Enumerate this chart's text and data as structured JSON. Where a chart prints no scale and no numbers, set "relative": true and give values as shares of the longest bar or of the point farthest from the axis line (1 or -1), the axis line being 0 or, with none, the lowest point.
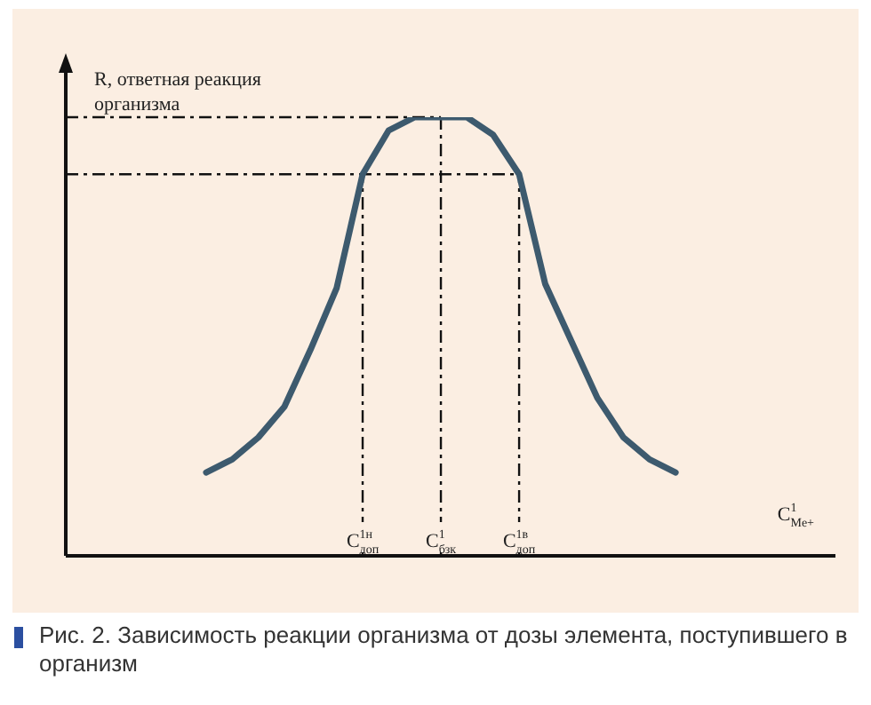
{
  "chart_data": {
    "type": "line",
    "title": "Рис. 2. Зависимость реакции организма от дозы элемента, поступившего в организм",
    "xlabel": "C$^{1}$$_{Me+}$",
    "ylabel": "R, ответная реакция организма",
    "relative": true,
    "grid": false,
    "legend": false,
    "marker": "none",
    "line_style": "solid",
    "categories": [
      null,
      null,
      null,
      null,
      null,
      null,
      "C$^{1н}$$_{доп}$",
      null,
      null,
      "C$^{1}$$_{бзк}$",
      null,
      null,
      "C$^{1в}$$_{доп}$",
      null,
      null,
      null,
      null,
      null,
      null
    ],
    "series": [
      {
        "color": "#3d5a6e",
        "values": [
          0.19,
          0.22,
          0.27,
          0.34,
          0.47,
          0.61,
          0.87,
          0.97,
          1,
          1,
          1,
          0.96,
          0.87,
          0.62,
          0.49,
          0.36,
          0.27,
          0.22,
          0.19
        ]
      }
    ],
    "ref_lines": [
      {
        "axis": "x",
        "value": "C$^{1н}$$_{доп}$",
        "color": "#111111",
        "line_style": "dashdot"
      },
      {
        "axis": "x",
        "value": "C$^{1}$$_{бзк}$",
        "color": "#111111",
        "line_style": "dashdot"
      },
      {
        "axis": "x",
        "value": "C$^{1в}$$_{доп}$",
        "color": "#111111",
        "line_style": "dashdot"
      },
      {
        "axis": "y",
        "value": 0.87,
        "color": "#111111",
        "line_style": "dashdot"
      },
      {
        "axis": "y",
        "value": 1,
        "color": "#111111",
        "line_style": "dashdot"
      }
    ]
  }
}
